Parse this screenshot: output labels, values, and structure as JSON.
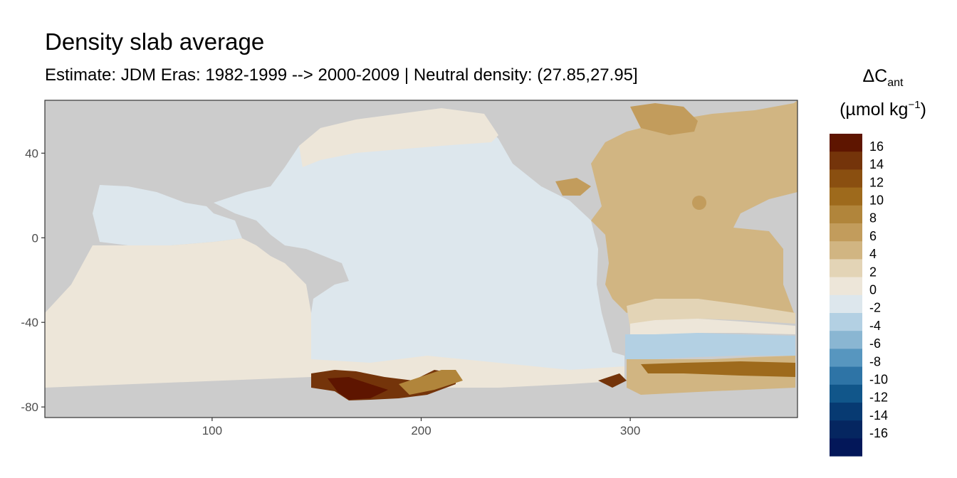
{
  "chart_data": {
    "type": "heatmap",
    "title": "Density slab average",
    "subtitle": "Estimate: JDM Eras: 1982-1999 --> 2000-2009 | Neutral density: (27.85,27.95]",
    "xlabel": "",
    "ylabel": "",
    "xlim": [
      20,
      380
    ],
    "ylim": [
      -85,
      65
    ],
    "x_ticks": [
      100,
      200,
      300
    ],
    "y_ticks": [
      40,
      0,
      -40,
      -80
    ],
    "grid": false,
    "legend_placement": "right",
    "legend": {
      "title_main": "ΔC",
      "title_sub": "ant",
      "units_open": "(µmol kg",
      "units_sup": "−1",
      "units_close": ")",
      "bins": [
        {
          "label": "16",
          "color": "#5e1500"
        },
        {
          "label": "14",
          "color": "#74340a"
        },
        {
          "label": "12",
          "color": "#8a4f10"
        },
        {
          "label": "10",
          "color": "#9e6a1c"
        },
        {
          "label": "8",
          "color": "#b1853b"
        },
        {
          "label": "6",
          "color": "#c29c5c"
        },
        {
          "label": "4",
          "color": "#d1b582"
        },
        {
          "label": "2",
          "color": "#e3d4b6"
        },
        {
          "label": "0",
          "color": "#ede6d9"
        },
        {
          "label": "-2",
          "color": "#dde7ed"
        },
        {
          "label": "-4",
          "color": "#b3d0e3"
        },
        {
          "label": "-6",
          "color": "#8ab6d2"
        },
        {
          "label": "-8",
          "color": "#5796bf"
        },
        {
          "label": "-10",
          "color": "#2e74a6"
        },
        {
          "label": "-12",
          "color": "#11568a"
        },
        {
          "label": "-14",
          "color": "#073a72"
        },
        {
          "label": "-16",
          "color": "#052660"
        }
      ],
      "extra_bottom_color": "#031759"
    },
    "colors": {
      "land": "#cccccc",
      "no_data": "#ffffff",
      "panel_border": "#333333"
    }
  }
}
